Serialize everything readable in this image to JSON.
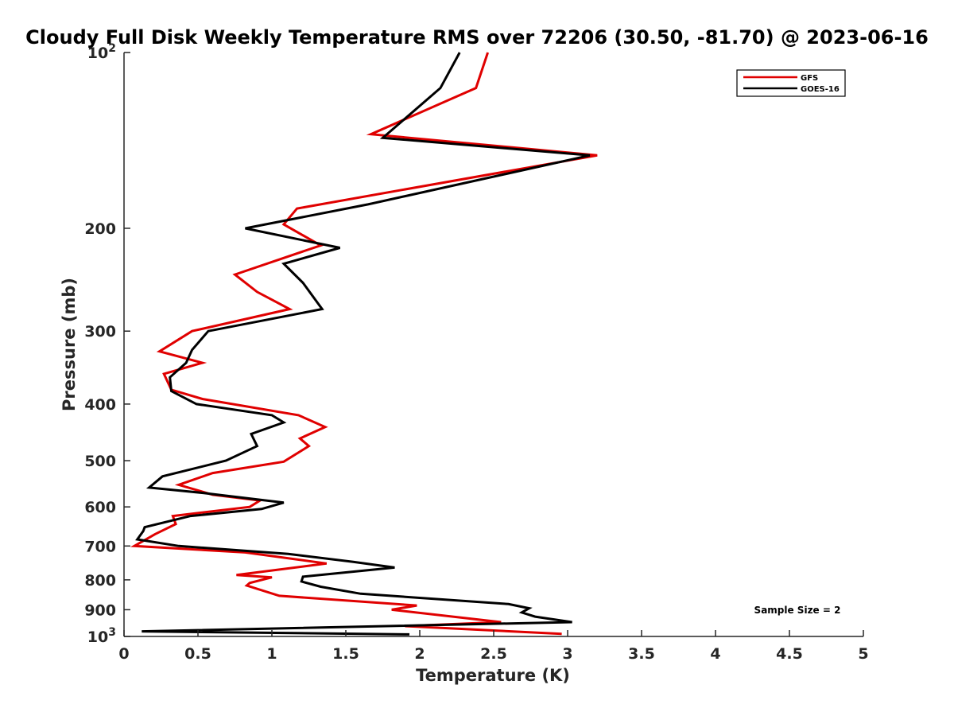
{
  "chart_data": {
    "type": "line",
    "title": "Cloudy Full Disk Weekly Temperature RMS over 72206 (30.50, -81.70) @ 2023-06-16",
    "xlabel": "Temperature (K)",
    "ylabel": "Pressure (mb)",
    "xlim": [
      0,
      5
    ],
    "ylim": [
      100,
      1000
    ],
    "yscale": "log",
    "y_reversed": true,
    "grid": false,
    "legend_position": "top-right",
    "x_ticks": [
      {
        "value": 0,
        "label": "0"
      },
      {
        "value": 0.5,
        "label": "0.5"
      },
      {
        "value": 1,
        "label": "1"
      },
      {
        "value": 1.5,
        "label": "1.5"
      },
      {
        "value": 2,
        "label": "2"
      },
      {
        "value": 2.5,
        "label": "2.5"
      },
      {
        "value": 3,
        "label": "3"
      },
      {
        "value": 3.5,
        "label": "3.5"
      },
      {
        "value": 4,
        "label": "4"
      },
      {
        "value": 4.5,
        "label": "4.5"
      },
      {
        "value": 5,
        "label": "5"
      }
    ],
    "y_ticks": [
      {
        "value": 100,
        "base": "10",
        "exp": "2"
      },
      {
        "value": 200,
        "label": "200"
      },
      {
        "value": 300,
        "label": "300"
      },
      {
        "value": 400,
        "label": "400"
      },
      {
        "value": 500,
        "label": "500"
      },
      {
        "value": 600,
        "label": "600"
      },
      {
        "value": 700,
        "label": "700"
      },
      {
        "value": 800,
        "label": "800"
      },
      {
        "value": 900,
        "label": "900"
      },
      {
        "value": 1000,
        "base": "10",
        "exp": "3"
      }
    ],
    "series": [
      {
        "name": "GFS",
        "color": "#e00000",
        "points": [
          [
            2.46,
            100
          ],
          [
            2.38,
            115
          ],
          [
            1.67,
            138
          ],
          [
            3.2,
            150
          ],
          [
            1.17,
            185
          ],
          [
            1.08,
            197
          ],
          [
            1.33,
            214
          ],
          [
            0.75,
            240
          ],
          [
            0.9,
            257
          ],
          [
            1.12,
            275
          ],
          [
            0.46,
            300
          ],
          [
            0.24,
            325
          ],
          [
            0.53,
            340
          ],
          [
            0.27,
            355
          ],
          [
            0.32,
            378
          ],
          [
            0.53,
            392
          ],
          [
            1.18,
            418
          ],
          [
            1.36,
            438
          ],
          [
            1.19,
            458
          ],
          [
            1.25,
            472
          ],
          [
            1.08,
            502
          ],
          [
            0.6,
            525
          ],
          [
            0.37,
            550
          ],
          [
            0.6,
            572
          ],
          [
            0.92,
            585
          ],
          [
            0.85,
            600
          ],
          [
            0.33,
            622
          ],
          [
            0.35,
            642
          ],
          [
            0.21,
            668
          ],
          [
            0.07,
            700
          ],
          [
            0.82,
            718
          ],
          [
            1.37,
            750
          ],
          [
            0.76,
            785
          ],
          [
            1.0,
            792
          ],
          [
            0.85,
            810
          ],
          [
            0.83,
            818
          ],
          [
            1.05,
            852
          ],
          [
            1.98,
            885
          ],
          [
            1.81,
            900
          ],
          [
            2.55,
            945
          ],
          [
            1.9,
            960
          ],
          [
            2.96,
            990
          ]
        ]
      },
      {
        "name": "GOES-16",
        "color": "#000000",
        "points": [
          [
            2.27,
            100
          ],
          [
            2.14,
            115
          ],
          [
            1.75,
            140
          ],
          [
            3.15,
            150
          ],
          [
            1.65,
            182
          ],
          [
            0.82,
            200
          ],
          [
            1.46,
            216
          ],
          [
            1.08,
            230
          ],
          [
            1.21,
            248
          ],
          [
            1.34,
            275
          ],
          [
            0.57,
            300
          ],
          [
            0.46,
            323
          ],
          [
            0.42,
            340
          ],
          [
            0.31,
            360
          ],
          [
            0.32,
            380
          ],
          [
            0.49,
            400
          ],
          [
            1.0,
            418
          ],
          [
            1.08,
            430
          ],
          [
            0.86,
            450
          ],
          [
            0.9,
            472
          ],
          [
            0.69,
            500
          ],
          [
            0.26,
            532
          ],
          [
            0.17,
            556
          ],
          [
            0.54,
            568
          ],
          [
            1.08,
            590
          ],
          [
            0.93,
            605
          ],
          [
            0.45,
            622
          ],
          [
            0.14,
            650
          ],
          [
            0.13,
            660
          ],
          [
            0.09,
            682
          ],
          [
            0.37,
            700
          ],
          [
            1.11,
            722
          ],
          [
            1.55,
            745
          ],
          [
            1.83,
            762
          ],
          [
            1.21,
            790
          ],
          [
            1.2,
            805
          ],
          [
            1.33,
            822
          ],
          [
            1.6,
            845
          ],
          [
            2.6,
            880
          ],
          [
            2.74,
            895
          ],
          [
            2.69,
            910
          ],
          [
            2.78,
            925
          ],
          [
            3.03,
            945
          ],
          [
            0.12,
            980
          ],
          [
            1.93,
            992
          ]
        ]
      }
    ],
    "annotation": "Sample Size = 2"
  }
}
